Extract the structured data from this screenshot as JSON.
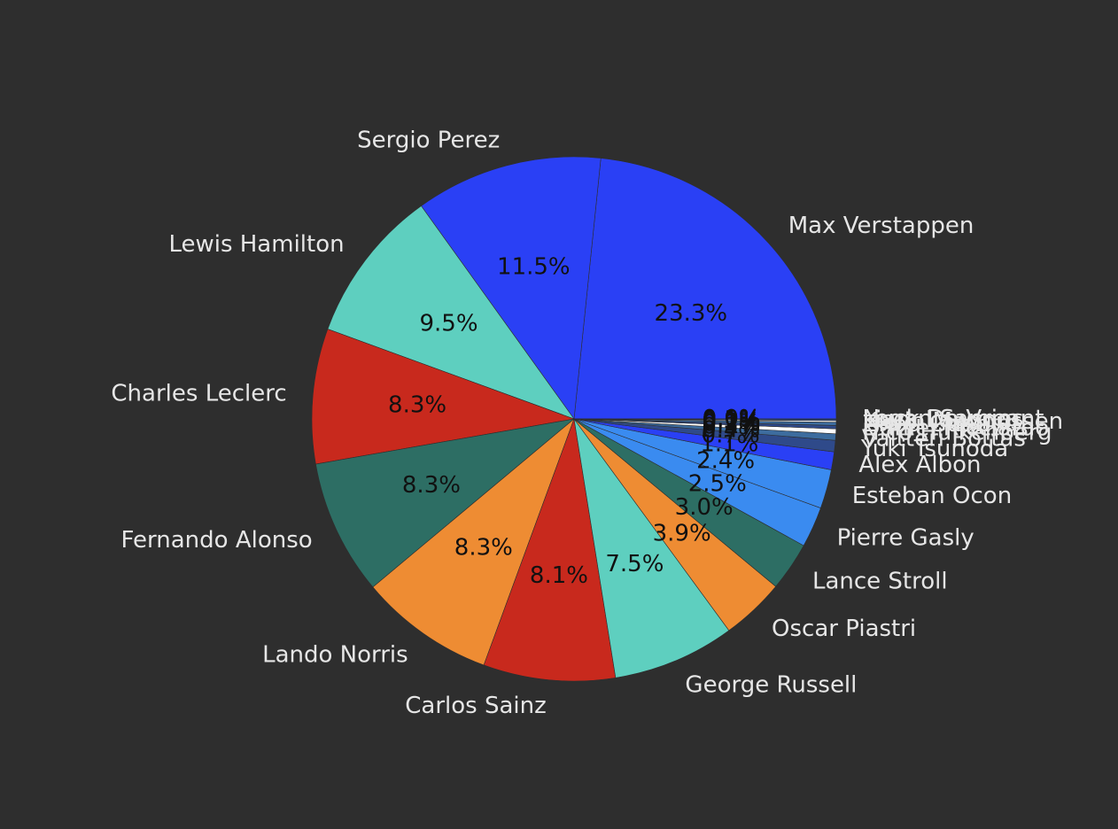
{
  "chart_data": {
    "type": "pie",
    "title": "",
    "start_angle_deg": 0,
    "direction": "counterclockwise",
    "value_format": "percent_1dp",
    "slices": [
      {
        "label": "Max Verstappen",
        "value": 23.3,
        "pct_text": "23.3%",
        "color": "#2a40f5"
      },
      {
        "label": "Sergio Perez",
        "value": 11.5,
        "pct_text": "11.5%",
        "color": "#2a40f5"
      },
      {
        "label": "Lewis Hamilton",
        "value": 9.5,
        "pct_text": "9.5%",
        "color": "#5ecfbf"
      },
      {
        "label": "Charles Leclerc",
        "value": 8.3,
        "pct_text": "8.3%",
        "color": "#c8291d"
      },
      {
        "label": "Fernando Alonso",
        "value": 8.3,
        "pct_text": "8.3%",
        "color": "#2d6e64"
      },
      {
        "label": "Lando Norris",
        "value": 8.3,
        "pct_text": "8.3%",
        "color": "#ee8c33"
      },
      {
        "label": "Carlos Sainz",
        "value": 8.1,
        "pct_text": "8.1%",
        "color": "#c8291d"
      },
      {
        "label": "George Russell",
        "value": 7.5,
        "pct_text": "7.5%",
        "color": "#5ecfbf"
      },
      {
        "label": "Oscar Piastri",
        "value": 3.9,
        "pct_text": "3.9%",
        "color": "#ee8c33"
      },
      {
        "label": "Lance Stroll",
        "value": 3.0,
        "pct_text": "3.0%",
        "color": "#2d6e64"
      },
      {
        "label": "Pierre Gasly",
        "value": 2.5,
        "pct_text": "2.5%",
        "color": "#3a8bf0"
      },
      {
        "label": "Esteban Ocon",
        "value": 2.4,
        "pct_text": "2.4%",
        "color": "#3a8bf0"
      },
      {
        "label": "Alex Albon",
        "value": 1.1,
        "pct_text": "1.1%",
        "color": "#2a40f5"
      },
      {
        "label": "Yuki Tsunoda",
        "value": 0.7,
        "pct_text": "0.7%",
        "color": "#2f4a8a"
      },
      {
        "label": "Valtteri Bottas",
        "value": 0.4,
        "pct_text": "0.4%",
        "color": "#3d6c9e"
      },
      {
        "label": "Nico Hulkenberg",
        "value": 0.3,
        "pct_text": "0.3%",
        "color": "#ffffff"
      },
      {
        "label": "Daniel Ricciardo",
        "value": 0.2,
        "pct_text": "0.2%",
        "color": "#2f4a8a"
      },
      {
        "label": "Zhou Guanyu",
        "value": 0.2,
        "pct_text": "0.2%",
        "color": "#3d6c9e"
      },
      {
        "label": "Kevin Magnussen",
        "value": 0.1,
        "pct_text": "0.1%",
        "color": "#ffffff"
      },
      {
        "label": "Liam Lawson",
        "value": 0.1,
        "pct_text": "0.1%",
        "color": "#2f4a8a"
      },
      {
        "label": "Logan Sargeant",
        "value": 0.0,
        "pct_text": "0.0%",
        "color": "#3d6c9e"
      },
      {
        "label": "Nyck De Vries",
        "value": 0.0,
        "pct_text": "0.0%",
        "color": "#2f4a8a"
      }
    ]
  }
}
